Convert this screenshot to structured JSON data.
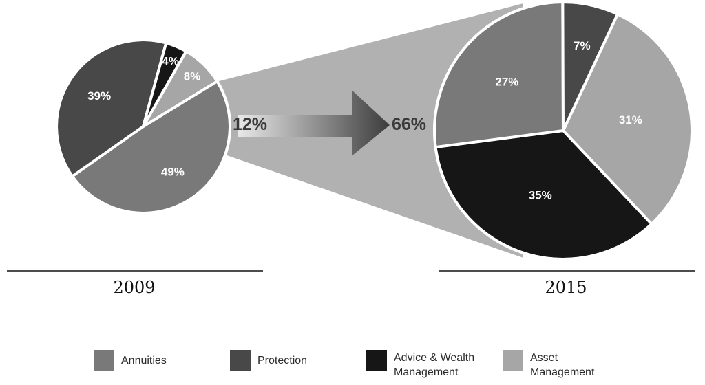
{
  "chart_data": [
    {
      "type": "pie",
      "title": "2009",
      "categories": [
        "Annuities",
        "Protection",
        "Advice & Wealth Management",
        "Asset Management"
      ],
      "values": [
        49,
        39,
        4,
        8
      ],
      "labels": [
        "49%",
        "39%",
        "4%",
        "8%"
      ],
      "highlight_share": "12%"
    },
    {
      "type": "pie",
      "title": "2015",
      "categories": [
        "Asset Management",
        "Advice & Wealth Management",
        "Annuities",
        "Protection"
      ],
      "values": [
        31,
        35,
        27,
        7
      ],
      "labels": [
        "31%",
        "35%",
        "27%",
        "7%"
      ],
      "highlight_share": "66%"
    }
  ],
  "colors": {
    "Annuities": "#797979",
    "Protection": "#484848",
    "Advice & Wealth Management": "#161616",
    "Asset Management": "#a6a6a6",
    "connector": "#b1b1b1",
    "arrow_dark": "#3d3d3d",
    "arrow_light": "#e9e9e9"
  },
  "legend": [
    {
      "label": "Annuities",
      "color": "#797979"
    },
    {
      "label": "Protection",
      "color": "#484848"
    },
    {
      "label": "Advice & Wealth Management",
      "color": "#161616"
    },
    {
      "label": "Asset Management",
      "color": "#a6a6a6"
    }
  ]
}
